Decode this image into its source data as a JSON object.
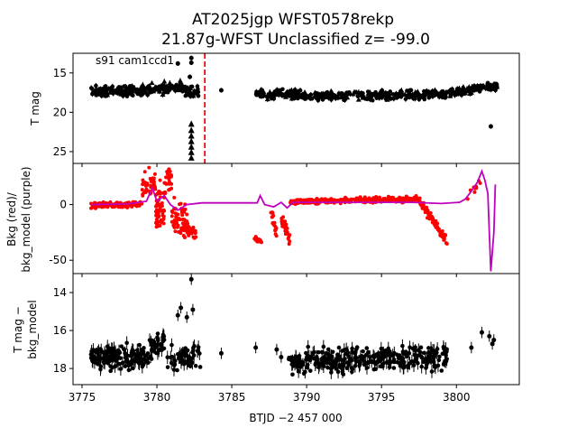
{
  "chart_data": [
    {
      "type": "scatter",
      "title_line1": "AT2025jgp  WFST0578rekp",
      "title_line2": "21.87g-WFST Unclassified z= -99.0",
      "annotation": "s91 cam1ccd1",
      "ylabel": "T mag",
      "xlim": [
        3774.4,
        3804.2
      ],
      "ylim": [
        26.5,
        12.5
      ],
      "y_inverted": true,
      "yticks": [
        15,
        20,
        25
      ],
      "marker_line_x": 3783.2,
      "series": [
        {
          "color": "#000000",
          "segments": [
            {
              "x0": 3775.6,
              "x1": 3779.0,
              "y0": 17.3,
              "y1": 17.3,
              "spread": 0.9,
              "n": 140
            },
            {
              "x0": 3779.0,
              "x1": 3781.8,
              "y0": 17.2,
              "y1": 16.7,
              "spread": 1.0,
              "n": 110
            },
            {
              "x0": 3781.8,
              "x1": 3782.8,
              "y0": 17.5,
              "y1": 17.3,
              "spread": 1.2,
              "n": 30
            },
            {
              "x0": 3786.5,
              "x1": 3790.0,
              "y0": 17.7,
              "y1": 17.8,
              "spread": 0.8,
              "n": 110
            },
            {
              "x0": 3790.0,
              "x1": 3799.5,
              "y0": 17.9,
              "y1": 17.7,
              "spread": 0.8,
              "n": 260
            },
            {
              "x0": 3799.5,
              "x1": 3802.8,
              "y0": 17.5,
              "y1": 16.6,
              "spread": 0.8,
              "n": 110
            }
          ],
          "points": [
            [
              3781.4,
              13.8
            ],
            [
              3782.3,
              13.1
            ],
            [
              3782.3,
              13.7
            ],
            [
              3782.2,
              15.5
            ],
            [
              3784.3,
              17.2
            ],
            [
              3802.1,
              16.3
            ],
            [
              3802.5,
              16.6
            ],
            [
              3802.3,
              21.8
            ],
            [
              3802.5,
              17.0
            ]
          ],
          "column_x": 3782.3,
          "column_y": [
            21.5,
            22.3,
            23.0,
            23.7,
            24.4,
            25.1,
            25.8
          ]
        }
      ]
    },
    {
      "type": "line",
      "ylabel_line1": "Bkg (red)/",
      "ylabel_line2": "bkg_model (purple)",
      "xlim": [
        3774.4,
        3804.2
      ],
      "ylim": [
        -62,
        37
      ],
      "yticks": [
        0,
        -50
      ],
      "series": [
        {
          "color": "#ff0000",
          "style": "points",
          "segments": [
            {
              "x0": 3775.6,
              "x1": 3779.0,
              "y0": -1.0,
              "y1": 0.5,
              "spread": 4.0,
              "n": 110
            },
            {
              "x0": 3779.0,
              "x1": 3779.9,
              "y0": 15.0,
              "y1": 20.0,
              "spread": 18.0,
              "n": 40
            },
            {
              "x0": 3779.9,
              "x1": 3780.5,
              "y0": -5.0,
              "y1": -2.0,
              "spread": 30.0,
              "n": 60
            },
            {
              "x0": 3780.5,
              "x1": 3781.0,
              "y0": 20.0,
              "y1": 22.0,
              "spread": 14.0,
              "n": 30
            },
            {
              "x0": 3781.0,
              "x1": 3782.0,
              "y0": -10.0,
              "y1": -15.0,
              "spread": 24.0,
              "n": 60
            },
            {
              "x0": 3782.0,
              "x1": 3782.6,
              "y0": -20.0,
              "y1": -25.0,
              "spread": 12.0,
              "n": 30
            },
            {
              "x0": 3786.5,
              "x1": 3787.0,
              "y0": -30.0,
              "y1": -33.0,
              "spread": 4.0,
              "n": 15
            },
            {
              "x0": 3787.6,
              "x1": 3788.0,
              "y0": -5.0,
              "y1": -25.0,
              "spread": 10.0,
              "n": 20
            },
            {
              "x0": 3788.3,
              "x1": 3788.9,
              "y0": -15.0,
              "y1": -30.0,
              "spread": 10.0,
              "n": 25
            },
            {
              "x0": 3788.9,
              "x1": 3790.0,
              "y0": 2.0,
              "y1": 3.0,
              "spread": 3.0,
              "n": 60
            },
            {
              "x0": 3790.0,
              "x1": 3797.5,
              "y0": 3.0,
              "y1": 5.0,
              "spread": 3.5,
              "n": 300
            },
            {
              "x0": 3797.5,
              "x1": 3799.4,
              "y0": 3.0,
              "y1": -33.0,
              "spread": 6.0,
              "n": 90
            },
            {
              "x0": 3800.6,
              "x1": 3801.6,
              "y0": 10.0,
              "y1": 16.0,
              "spread": 14.0,
              "n": 10
            }
          ]
        },
        {
          "color": "#bf00bf",
          "style": "line",
          "path": [
            [
              3775.6,
              0
            ],
            [
              3778.0,
              0.5
            ],
            [
              3779.3,
              3
            ],
            [
              3779.7,
              15
            ],
            [
              3780.0,
              3
            ],
            [
              3780.5,
              8
            ],
            [
              3780.9,
              0
            ],
            [
              3781.4,
              -5
            ],
            [
              3782.0,
              0
            ],
            [
              3783.0,
              1.5
            ],
            [
              3786.7,
              1.5
            ],
            [
              3786.9,
              8
            ],
            [
              3787.2,
              0
            ],
            [
              3787.8,
              -2
            ],
            [
              3788.3,
              2
            ],
            [
              3788.7,
              -3
            ],
            [
              3789.1,
              2
            ],
            [
              3797.0,
              2
            ],
            [
              3799.0,
              1
            ],
            [
              3800.2,
              2
            ],
            [
              3800.6,
              5
            ],
            [
              3801.0,
              12
            ],
            [
              3801.4,
              20
            ],
            [
              3801.7,
              30
            ],
            [
              3801.9,
              22
            ],
            [
              3802.1,
              10
            ],
            [
              3802.3,
              -60
            ],
            [
              3802.5,
              -25
            ],
            [
              3802.6,
              18
            ]
          ]
        }
      ]
    },
    {
      "type": "scatter",
      "ylabel_line1": "T mag −",
      "ylabel_line2": "bkg_model",
      "xlabel": "BTJD −2 457 000",
      "xlim": [
        3774.4,
        3804.2
      ],
      "ylim": [
        18.85,
        13.0
      ],
      "y_inverted": true,
      "yticks": [
        14,
        16,
        18
      ],
      "xticks": [
        3775,
        3780,
        3785,
        3790,
        3795,
        3800
      ],
      "series": [
        {
          "color": "#000000",
          "segments": [
            {
              "x0": 3775.6,
              "x1": 3779.5,
              "y0": 17.5,
              "y1": 17.4,
              "spread": 0.9,
              "n": 150
            },
            {
              "x0": 3779.5,
              "x1": 3780.5,
              "y0": 17.0,
              "y1": 16.6,
              "spread": 0.8,
              "n": 40
            },
            {
              "x0": 3780.7,
              "x1": 3782.9,
              "y0": 17.5,
              "y1": 17.3,
              "spread": 1.0,
              "n": 60
            },
            {
              "x0": 3788.8,
              "x1": 3799.4,
              "y0": 17.6,
              "y1": 17.4,
              "spread": 0.9,
              "n": 320
            }
          ],
          "points": [
            [
              3782.3,
              13.3
            ],
            [
              3781.6,
              14.8
            ],
            [
              3782.4,
              14.9
            ],
            [
              3781.4,
              15.2
            ],
            [
              3782.0,
              15.3
            ],
            [
              3784.3,
              17.2
            ],
            [
              3786.6,
              16.9
            ],
            [
              3788.0,
              17.0
            ],
            [
              3788.3,
              17.4
            ],
            [
              3801.0,
              16.9
            ],
            [
              3801.7,
              16.1
            ],
            [
              3802.2,
              16.3
            ],
            [
              3802.4,
              16.7
            ],
            [
              3802.5,
              16.5
            ]
          ]
        }
      ]
    }
  ]
}
